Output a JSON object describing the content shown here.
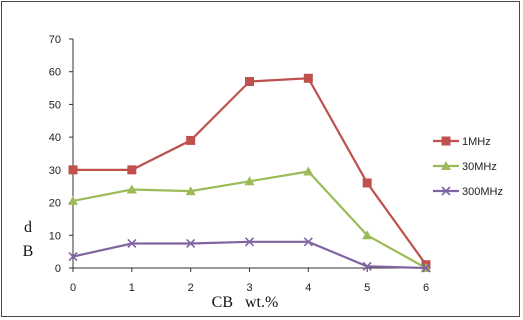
{
  "chart_data": {
    "type": "line",
    "x": [
      0,
      1,
      2,
      3,
      4,
      5,
      6
    ],
    "xlabel": "CB   wt.%",
    "ylabel_lines": [
      "d",
      "B"
    ],
    "ylim": [
      0,
      70
    ],
    "yticks": [
      0,
      10,
      20,
      30,
      40,
      50,
      60,
      70
    ],
    "xlim": [
      0,
      6
    ],
    "grid": false,
    "legend_position": "right",
    "series": [
      {
        "name": "1MHz",
        "color": "#c0504d",
        "marker": "square",
        "values": [
          30,
          30,
          39,
          57,
          58,
          26,
          1
        ]
      },
      {
        "name": "30MHz",
        "color": "#9bbb59",
        "marker": "triangle",
        "values": [
          20.5,
          24,
          23.5,
          26.5,
          29.5,
          10,
          0
        ]
      },
      {
        "name": "300MHz",
        "color": "#8064a2",
        "marker": "x",
        "values": [
          3.5,
          7.5,
          7.5,
          8,
          8,
          0.5,
          0
        ]
      }
    ]
  }
}
